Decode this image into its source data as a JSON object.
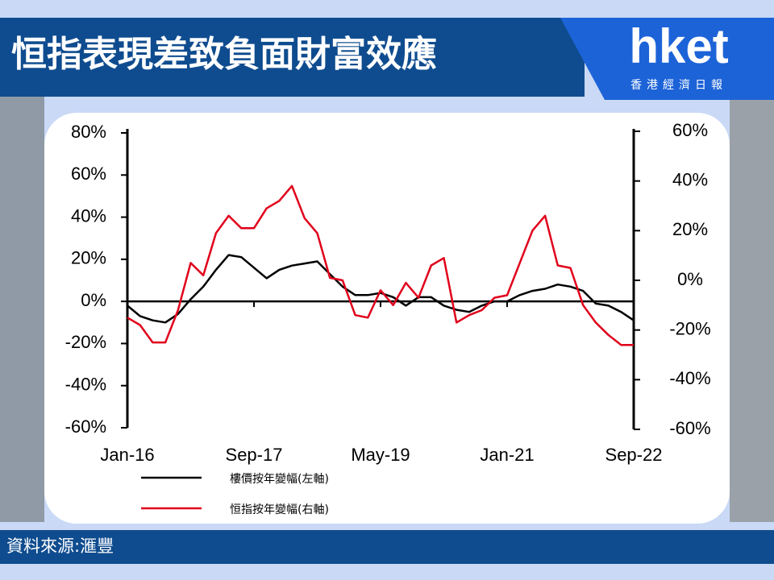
{
  "header": {
    "title": "恒指表現差致負面財富效應",
    "logo": "hket",
    "logo_sub": "香港經濟日報"
  },
  "footer": {
    "source": "資料來源:滙豐"
  },
  "chart_data": {
    "type": "line",
    "categories": [
      "Jan-16",
      null,
      null,
      null,
      null,
      null,
      null,
      null,
      null,
      null,
      "Sep-17",
      null,
      null,
      null,
      null,
      null,
      null,
      null,
      null,
      null,
      "May-19",
      null,
      null,
      null,
      null,
      null,
      null,
      null,
      null,
      null,
      "Jan-21",
      null,
      null,
      null,
      null,
      null,
      null,
      null,
      null,
      null,
      "Sep-22"
    ],
    "series": [
      {
        "name": "樓價按年變幅(左軸)",
        "color": "#000000",
        "axis": "y",
        "values": [
          -2,
          -7,
          -9,
          -10,
          -6,
          1,
          7,
          15,
          22,
          21,
          16,
          11,
          15,
          17,
          18,
          19,
          13,
          7,
          3,
          3,
          4,
          2,
          -2,
          2,
          2,
          -2,
          -4,
          -5,
          -2,
          0,
          0,
          3,
          5,
          6,
          8,
          7,
          5,
          -1,
          -2,
          -5,
          -9
        ]
      },
      {
        "name": "恒指按年變幅(右軸)",
        "color": "#e0001b",
        "axis": "y2",
        "values": [
          -15,
          -18,
          -25,
          -25,
          -12,
          7,
          2,
          19,
          26,
          21,
          21,
          29,
          32,
          38,
          25,
          19,
          1,
          0,
          -14,
          -15,
          -4,
          -10,
          -1,
          -7,
          6,
          9,
          -17,
          -14,
          -12,
          -7,
          -6,
          7,
          20,
          26,
          6,
          5,
          -10,
          -17,
          -22,
          -26,
          -26
        ]
      }
    ],
    "ylim": [
      -60,
      80
    ],
    "yticks": [
      {
        "value": -60,
        "label": "-60%"
      },
      {
        "value": -40,
        "label": "-40%"
      },
      {
        "value": -20,
        "label": "-20%"
      },
      {
        "value": 0,
        "label": "0%"
      },
      {
        "value": 20,
        "label": "20%"
      },
      {
        "value": 40,
        "label": "40%"
      },
      {
        "value": 60,
        "label": "60%"
      },
      {
        "value": 80,
        "label": "80%"
      }
    ],
    "y2lim": [
      -60,
      60
    ],
    "y2ticks": [
      {
        "value": -60,
        "label": "-60%"
      },
      {
        "value": -40,
        "label": "-40%"
      },
      {
        "value": -20,
        "label": "-20%"
      },
      {
        "value": 0,
        "label": "0%"
      },
      {
        "value": 20,
        "label": "20%"
      },
      {
        "value": 40,
        "label": "40%"
      },
      {
        "value": 60,
        "label": "60%"
      }
    ]
  }
}
